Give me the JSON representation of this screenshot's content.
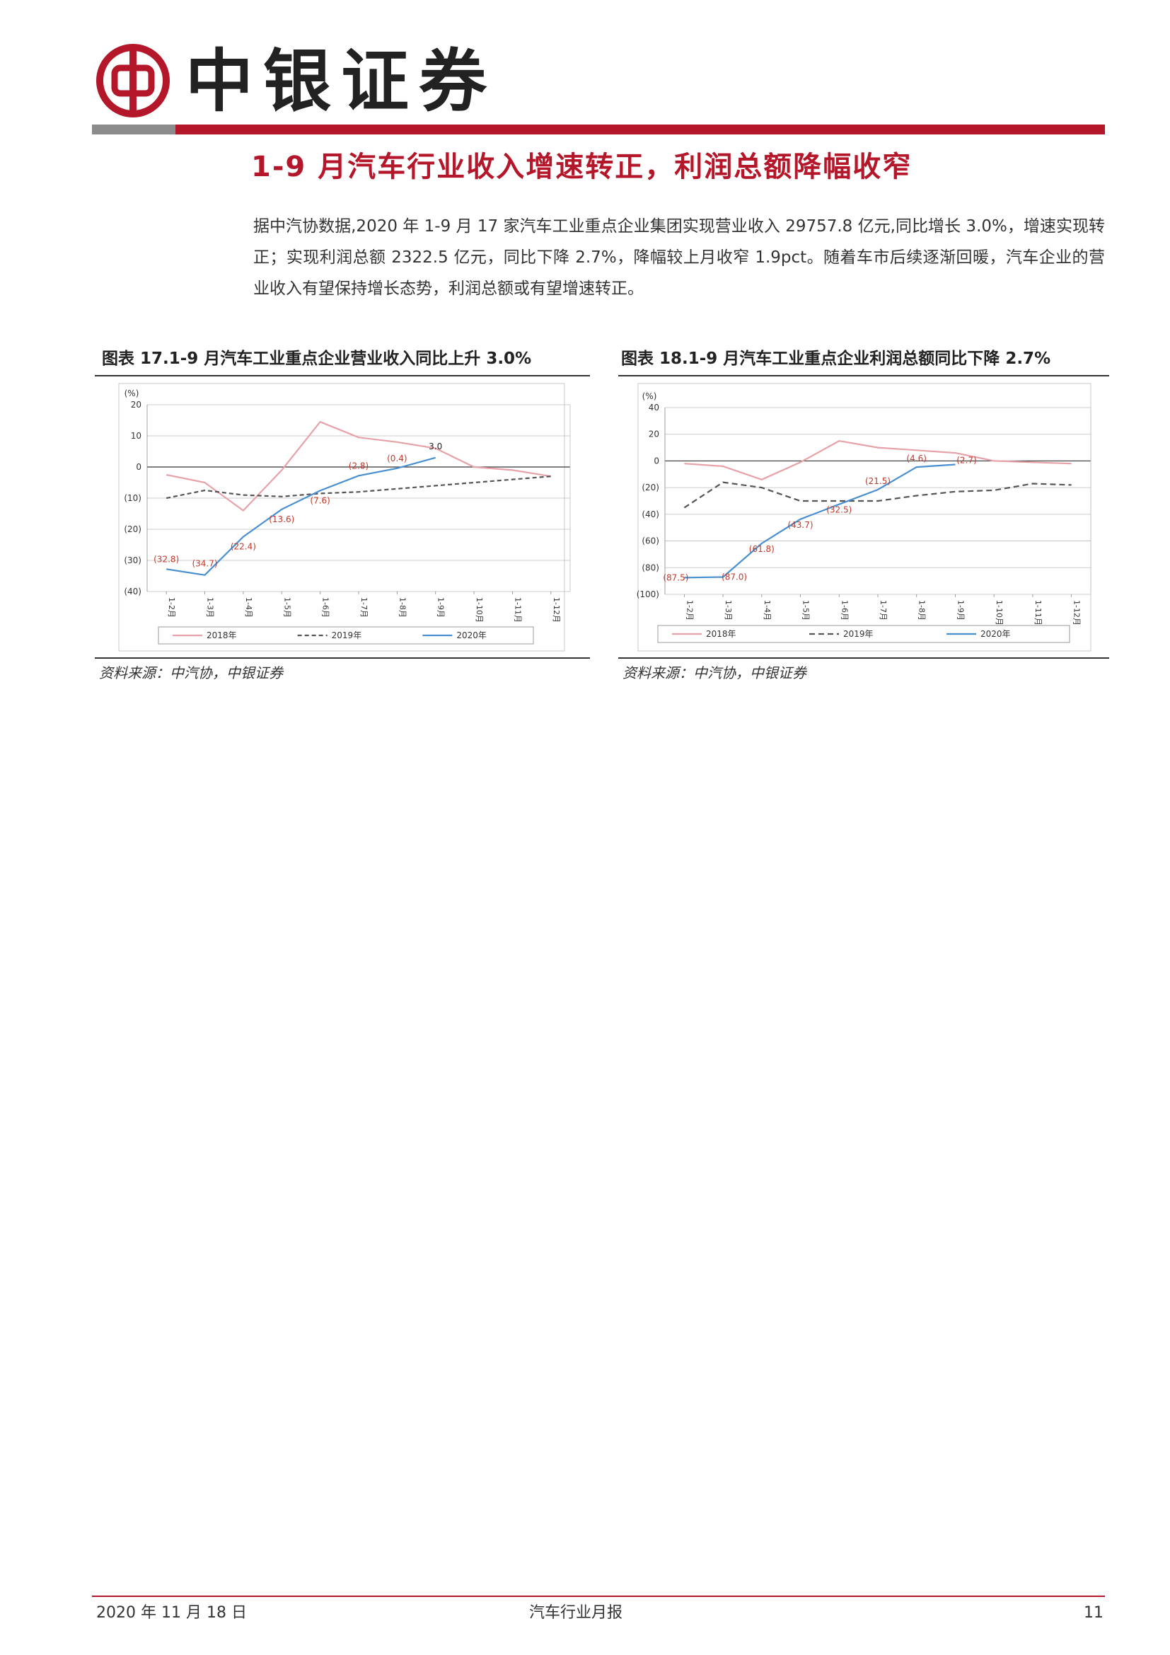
{
  "header": {
    "brand": "中银证券",
    "colors": {
      "brand_red": "#b5172a",
      "bar_gray": "#8c8c8c"
    },
    "logo_icon": "bank-of-china-logo-icon"
  },
  "section": {
    "title": "1-9 月汽车行业收入增速转正，利润总额降幅收窄",
    "body": "据中汽协数据,2020 年 1-9 月 17 家汽车工业重点企业集团实现营业收入 29757.8 亿元,同比增长 3.0%，增速实现转正；实现利润总额 2322.5 亿元，同比下降 2.7%，降幅较上月收窄 1.9pct。随着车市后续逐渐回暖，汽车企业的营业收入有望保持增长态势，利润总额或有望增速转正。"
  },
  "figures": [
    {
      "title": "图表 17.1-9 月汽车工业重点企业营业收入同比上升 3.0%",
      "source": "资料来源：中汽协，中银证券"
    },
    {
      "title": "图表 18.1-9 月汽车工业重点企业利润总额同比下降 2.7%",
      "source": "资料来源：中汽协，中银证券"
    }
  ],
  "chart_data": [
    {
      "type": "line",
      "ylabel": "(%)",
      "ylim": [
        -40,
        20
      ],
      "yticks": [
        20,
        10,
        0,
        -10,
        -20,
        -30,
        -40
      ],
      "ytick_labels": [
        "20",
        "10",
        "0",
        "(10)",
        "(20)",
        "(30)",
        "(40)"
      ],
      "grid": true,
      "legend_position": "bottom",
      "categories": [
        "1-2月",
        "1-3月",
        "1-4月",
        "1-5月",
        "1-6月",
        "1-7月",
        "1-8月",
        "1-9月",
        "1-10月",
        "1-11月",
        "1-12月"
      ],
      "series": [
        {
          "name": "2018年",
          "color": "#e7a1a8",
          "dash": "",
          "values": [
            -2.5,
            -5,
            -14,
            -1,
            14.5,
            9.5,
            8,
            6,
            0,
            -1,
            -3
          ]
        },
        {
          "name": "2019年",
          "color": "#555555",
          "dash": "6,4",
          "values": [
            -10,
            -7.5,
            -9,
            -9.5,
            -8.5,
            -8,
            -7,
            -6,
            -5,
            -4,
            -3
          ]
        },
        {
          "name": "2020年",
          "color": "#4a8fd0",
          "dash": "",
          "values": [
            -32.8,
            -34.7,
            -22.4,
            -13.6,
            -7.6,
            -2.8,
            -0.4,
            3.0,
            null,
            null,
            null
          ]
        }
      ],
      "data_labels": [
        "(32.8)",
        "(34.7)",
        "(22.4)",
        "(13.6)",
        "(7.6)",
        "(2.8)",
        "(0.4)",
        "3.0"
      ]
    },
    {
      "type": "line",
      "ylabel": "(%)",
      "ylim": [
        -100,
        40
      ],
      "yticks": [
        40,
        20,
        0,
        -20,
        -40,
        -60,
        -80,
        -100
      ],
      "ytick_labels": [
        "40",
        "20",
        "0",
        "(20)",
        "(40)",
        "(60)",
        "(80)",
        "(100)"
      ],
      "grid": true,
      "legend_position": "bottom",
      "categories": [
        "1-2月",
        "1-3月",
        "1-4月",
        "1-5月",
        "1-6月",
        "1-7月",
        "1-8月",
        "1-9月",
        "1-10月",
        "1-11月",
        "1-12月"
      ],
      "series": [
        {
          "name": "2018年",
          "color": "#e7a1a8",
          "dash": "",
          "values": [
            -2,
            -4,
            -14,
            -1,
            15,
            10,
            8,
            6,
            0,
            -1,
            -2
          ]
        },
        {
          "name": "2019年",
          "color": "#555555",
          "dash": "8,5",
          "values": [
            -35,
            -16,
            -20,
            -30,
            -30,
            -30,
            -26,
            -23,
            -22,
            -17,
            -18
          ]
        },
        {
          "name": "2020年",
          "color": "#4a8fd0",
          "dash": "",
          "values": [
            -87.5,
            -87.0,
            -61.8,
            -43.7,
            -32.5,
            -21.5,
            -4.6,
            -2.7,
            null,
            null,
            null
          ]
        }
      ],
      "data_labels": [
        "(87.5)",
        "(87.0)",
        "(61.8)",
        "(43.7)",
        "(32.5)",
        "(21.5)",
        "(4.6)",
        "(2.7)"
      ]
    }
  ],
  "footer": {
    "date": "2020 年 11 月 18 日",
    "report": "汽车行业月报",
    "page": "11"
  }
}
